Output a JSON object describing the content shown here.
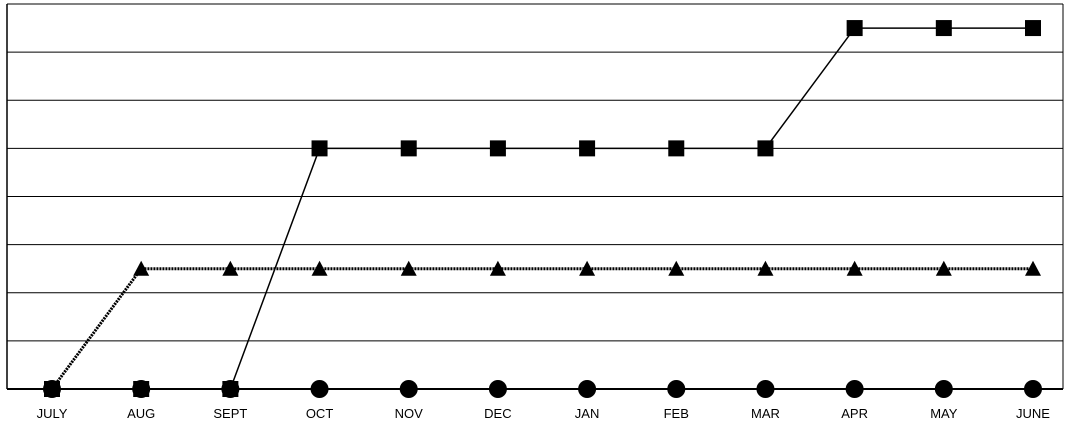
{
  "chart_data": {
    "type": "line",
    "title": "",
    "xlabel": "",
    "ylabel": "",
    "categories": [
      "JULY",
      "AUG",
      "SEPT",
      "OCT",
      "NOV",
      "DEC",
      "JAN",
      "FEB",
      "MAR",
      "APR",
      "MAY",
      "JUNE"
    ],
    "ylim": [
      0,
      8
    ],
    "y_gridlines": [
      0,
      1,
      2,
      3,
      4,
      5,
      6,
      7,
      8
    ],
    "y_tick_labels_shown": false,
    "grid": "horizontal",
    "legend": "none",
    "series": [
      {
        "marker": "square",
        "line_style": "solid",
        "color": "#000000",
        "values": [
          0,
          0,
          0,
          5,
          5,
          5,
          5,
          5,
          5,
          7.5,
          7.5,
          7.5
        ]
      },
      {
        "marker": "triangle",
        "line_style": "dotted",
        "color": "#000000",
        "values": [
          0,
          2.5,
          2.5,
          2.5,
          2.5,
          2.5,
          2.5,
          2.5,
          2.5,
          2.5,
          2.5,
          2.5
        ]
      },
      {
        "marker": "circle",
        "line_style": "dashed",
        "color": "#000000",
        "values": [
          0,
          0,
          0,
          0,
          0,
          0,
          0,
          0,
          0,
          0,
          0,
          0
        ]
      }
    ]
  }
}
